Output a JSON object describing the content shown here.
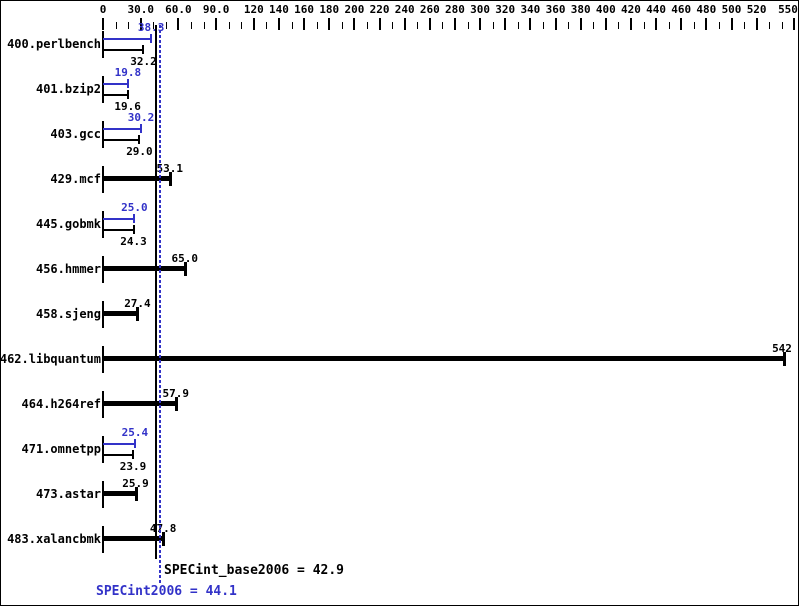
{
  "chart_data": {
    "type": "bar",
    "orientation": "horizontal",
    "axis": {
      "range": [
        0,
        550
      ],
      "minor_step": 10,
      "major_ticks": [
        {
          "v": 0,
          "label": "0"
        },
        {
          "v": 30,
          "label": "30.0"
        },
        {
          "v": 60,
          "label": "60.0"
        },
        {
          "v": 90,
          "label": "90.0"
        },
        {
          "v": 120,
          "label": "120"
        },
        {
          "v": 140,
          "label": "140"
        },
        {
          "v": 160,
          "label": "160"
        },
        {
          "v": 180,
          "label": "180"
        },
        {
          "v": 200,
          "label": "200"
        },
        {
          "v": 220,
          "label": "220"
        },
        {
          "v": 240,
          "label": "240"
        },
        {
          "v": 260,
          "label": "260"
        },
        {
          "v": 280,
          "label": "280"
        },
        {
          "v": 300,
          "label": "300"
        },
        {
          "v": 320,
          "label": "320"
        },
        {
          "v": 340,
          "label": "340"
        },
        {
          "v": 360,
          "label": "360"
        },
        {
          "v": 380,
          "label": "380"
        },
        {
          "v": 400,
          "label": "400"
        },
        {
          "v": 420,
          "label": "420"
        },
        {
          "v": 440,
          "label": "440"
        },
        {
          "v": 460,
          "label": "460"
        },
        {
          "v": 480,
          "label": "480"
        },
        {
          "v": 500,
          "label": "500"
        },
        {
          "v": 520,
          "label": "520"
        },
        {
          "v": 550,
          "label": "550"
        }
      ]
    },
    "benchmarks": [
      {
        "name": "400.perlbench",
        "style": "double",
        "peak": {
          "value": 38.3,
          "label": "38.3"
        },
        "base": {
          "value": 32.2,
          "label": "32.2"
        }
      },
      {
        "name": "401.bzip2",
        "style": "double",
        "peak": {
          "value": 19.8,
          "label": "19.8"
        },
        "base": {
          "value": 19.6,
          "label": "19.6"
        }
      },
      {
        "name": "403.gcc",
        "style": "double",
        "peak": {
          "value": 30.2,
          "label": "30.2"
        },
        "base": {
          "value": 29.0,
          "label": "29.0"
        }
      },
      {
        "name": "429.mcf",
        "style": "single",
        "base": {
          "value": 53.1,
          "label": "53.1"
        }
      },
      {
        "name": "445.gobmk",
        "style": "double",
        "peak": {
          "value": 25.0,
          "label": "25.0"
        },
        "base": {
          "value": 24.3,
          "label": "24.3"
        }
      },
      {
        "name": "456.hmmer",
        "style": "single",
        "base": {
          "value": 65.0,
          "label": "65.0"
        }
      },
      {
        "name": "458.sjeng",
        "style": "single",
        "base": {
          "value": 27.4,
          "label": "27.4"
        }
      },
      {
        "name": "462.libquantum",
        "style": "single",
        "base": {
          "value": 542,
          "label": "542"
        }
      },
      {
        "name": "464.h264ref",
        "style": "single",
        "base": {
          "value": 57.9,
          "label": "57.9"
        }
      },
      {
        "name": "471.omnetpp",
        "style": "double",
        "peak": {
          "value": 25.4,
          "label": "25.4"
        },
        "base": {
          "value": 23.9,
          "label": "23.9"
        }
      },
      {
        "name": "473.astar",
        "style": "single",
        "base": {
          "value": 25.9,
          "label": "25.9"
        }
      },
      {
        "name": "483.xalancbmk",
        "style": "single",
        "base": {
          "value": 47.8,
          "label": "47.8"
        }
      }
    ],
    "summary": {
      "base": {
        "value": 42.9,
        "label": "SPECint_base2006 = 42.9"
      },
      "peak": {
        "value": 44.1,
        "label": "SPECint2006 = 44.1"
      }
    },
    "colors": {
      "bar_base": "#000000",
      "bar_peak": "#3232c8",
      "mean_base_line": "#000000",
      "mean_peak_line": "#3232c8",
      "text": "#000000",
      "background": "#ffffff"
    }
  }
}
